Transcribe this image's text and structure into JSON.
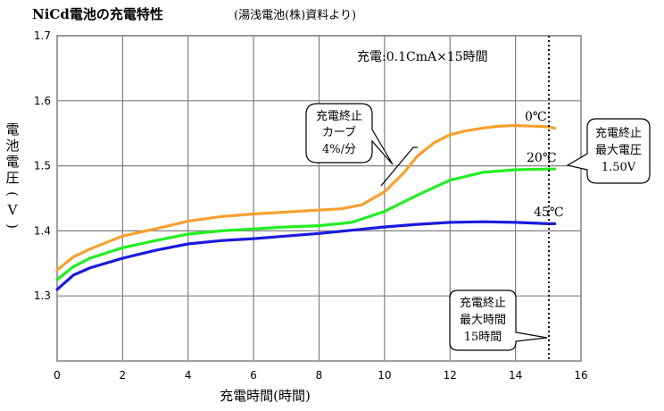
{
  "chart_data": {
    "type": "line",
    "title": "NiCd電池の充電特性",
    "subtitle": "(湯浅電池(株)資料より)",
    "xlabel": "充電時間(時間)",
    "ylabel": "電池電圧(V)",
    "xlim": [
      0,
      16
    ],
    "ylim": [
      1.2,
      1.7
    ],
    "x_ticks": [
      "0",
      "2",
      "4",
      "6",
      "8",
      "10",
      "12",
      "14",
      "16"
    ],
    "y_ticks": [
      "1.3",
      "1.4",
      "1.5",
      "1.6",
      "1.7"
    ],
    "grid": true,
    "condition_label": "充電:0.1CmA×15時間",
    "series": [
      {
        "name": "0℃",
        "color": "#F7A030",
        "x": [
          0,
          0.5,
          1,
          2,
          3,
          4,
          5,
          6,
          7,
          8,
          8.7,
          9.3,
          10,
          10.6,
          11,
          11.5,
          12,
          12.5,
          13,
          13.5,
          14,
          14.5,
          15,
          15.2
        ],
        "y": [
          1.34,
          1.36,
          1.372,
          1.392,
          1.403,
          1.415,
          1.422,
          1.426,
          1.429,
          1.432,
          1.434,
          1.44,
          1.46,
          1.49,
          1.515,
          1.535,
          1.548,
          1.554,
          1.558,
          1.561,
          1.562,
          1.561,
          1.56,
          1.558
        ]
      },
      {
        "name": "20℃",
        "color": "#22EE22",
        "x": [
          0,
          0.5,
          1,
          2,
          3,
          4,
          5,
          6,
          7,
          8,
          9,
          10,
          11,
          12,
          13,
          14,
          15,
          15.2
        ],
        "y": [
          1.325,
          1.345,
          1.358,
          1.374,
          1.385,
          1.395,
          1.4,
          1.403,
          1.406,
          1.408,
          1.413,
          1.43,
          1.455,
          1.478,
          1.49,
          1.494,
          1.495,
          1.495
        ]
      },
      {
        "name": "45℃",
        "color": "#1A1AE0",
        "x": [
          0,
          0.5,
          1,
          2,
          3,
          4,
          5,
          6,
          7,
          8,
          9,
          10,
          11,
          12,
          13,
          14,
          15,
          15.2
        ],
        "y": [
          1.31,
          1.332,
          1.343,
          1.358,
          1.37,
          1.38,
          1.385,
          1.388,
          1.392,
          1.396,
          1.401,
          1.406,
          1.41,
          1.413,
          1.414,
          1.413,
          1.411,
          1.411
        ]
      }
    ],
    "annotations": {
      "slope_callout": [
        "充電終止",
        "カーブ",
        "4%/分"
      ],
      "max_voltage_callout": [
        "充電終止",
        "最大電圧",
        "1.50V"
      ],
      "max_time_callout": [
        "充電終止",
        "最大時間",
        "15時間"
      ]
    }
  }
}
